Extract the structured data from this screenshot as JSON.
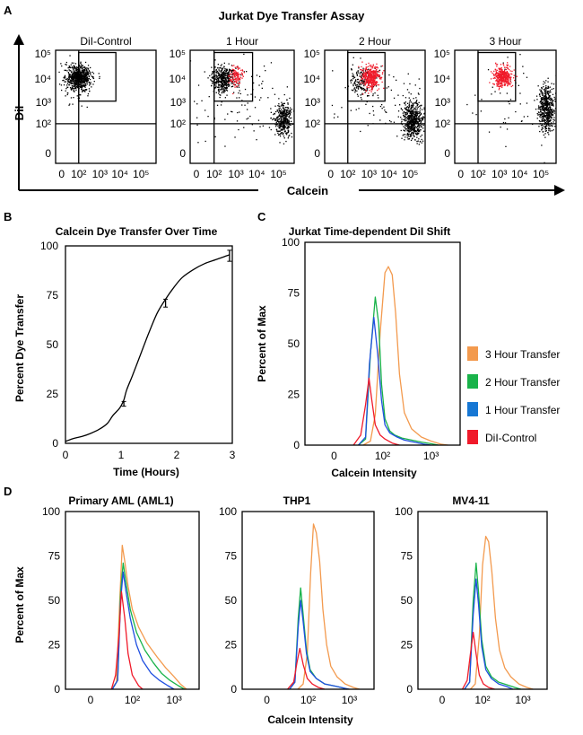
{
  "panel_labels": {
    "a": "A",
    "b": "B",
    "c": "C",
    "d": "D"
  },
  "colors": {
    "orange": "#f39a4e",
    "green": "#19b34a",
    "blue": "#1f4fe0",
    "red": "#f01a2a",
    "legend_blue": "#1677d4",
    "black": "#000000"
  },
  "panel_a": {
    "title": "Jurkat Dye Transfer Assay",
    "ylabel": "DiI",
    "xlabel": "Calcein",
    "subplots": [
      {
        "title": "DiI-Control",
        "black_clusters": [
          {
            "cx": 1.15,
            "cy": 3.8,
            "sx": 0.3,
            "sy": 0.28,
            "n": 650
          },
          {
            "cx": 0.8,
            "cy": 3.6,
            "sx": 0.4,
            "sy": 0.45,
            "n": 60
          }
        ],
        "red_clusters": []
      },
      {
        "title": "1 Hour",
        "black_clusters": [
          {
            "cx": 1.55,
            "cy": 3.75,
            "sx": 0.28,
            "sy": 0.27,
            "n": 420
          },
          {
            "cx": 4.45,
            "cy": 1.95,
            "sx": 0.22,
            "sy": 0.38,
            "n": 380
          },
          {
            "cx": 2.5,
            "cy": 2.8,
            "sx": 1.2,
            "sy": 1.0,
            "n": 90
          }
        ],
        "red_clusters": [
          {
            "cx": 2.2,
            "cy": 3.85,
            "sx": 0.15,
            "sy": 0.22,
            "n": 110
          }
        ]
      },
      {
        "title": "2 Hour",
        "black_clusters": [
          {
            "cx": 4.35,
            "cy": 1.95,
            "sx": 0.25,
            "sy": 0.42,
            "n": 560
          },
          {
            "cx": 1.8,
            "cy": 3.65,
            "sx": 0.3,
            "sy": 0.3,
            "n": 160
          },
          {
            "cx": 2.6,
            "cy": 2.8,
            "sx": 1.2,
            "sy": 1.0,
            "n": 80
          }
        ],
        "red_clusters": [
          {
            "cx": 2.3,
            "cy": 3.8,
            "sx": 0.22,
            "sy": 0.25,
            "n": 380
          }
        ]
      },
      {
        "title": "3 Hour",
        "black_clusters": [
          {
            "cx": 4.5,
            "cy": 2.45,
            "sx": 0.18,
            "sy": 0.5,
            "n": 520
          },
          {
            "cx": 2.8,
            "cy": 2.8,
            "sx": 1.1,
            "sy": 1.0,
            "n": 60
          }
        ],
        "red_clusters": [
          {
            "cx": 2.35,
            "cy": 3.85,
            "sx": 0.22,
            "sy": 0.22,
            "n": 400
          }
        ]
      }
    ],
    "y_ticks": [
      "0",
      "10²",
      "10³",
      "10⁴",
      "10⁵"
    ],
    "x_ticks": [
      "0",
      "10²",
      "10³",
      "10⁴",
      "10⁵"
    ]
  },
  "chart_data": [
    {
      "type": "line",
      "title": "Calcein  Dye Transfer Over Time",
      "xlabel": "Time (Hours)",
      "ylabel": "Percent Dye Transfer",
      "xlim": [
        0,
        3
      ],
      "ylim": [
        0,
        100
      ],
      "x_ticks": [
        "0",
        "1",
        "2",
        "3"
      ],
      "y_ticks": [
        "0",
        "25",
        "50",
        "75",
        "100"
      ],
      "curve_x": [
        0,
        0.15,
        0.3,
        0.45,
        0.6,
        0.75,
        0.85,
        0.95,
        1.0,
        1.05,
        1.1,
        1.2,
        1.35,
        1.5,
        1.65,
        1.8,
        1.95,
        2.1,
        2.3,
        2.5,
        2.7,
        2.85,
        2.95
      ],
      "curve_y": [
        1,
        2.5,
        3.5,
        5,
        7,
        10,
        14,
        17,
        19,
        22,
        27,
        34,
        45,
        56,
        66,
        73,
        79,
        84,
        88,
        91,
        93,
        94.5,
        95.5
      ],
      "points": [
        {
          "x": 1.05,
          "y": 20,
          "err": 1.2
        },
        {
          "x": 1.8,
          "y": 71,
          "err": 2
        },
        {
          "x": 2.95,
          "y": 95,
          "err": 2.8
        }
      ]
    },
    {
      "type": "line",
      "title": "Jurkat Time-dependent DiI Shift",
      "xlabel": "Calcein  Intensity",
      "ylabel": "Percent of Max",
      "ylim": [
        0,
        100
      ],
      "x_ticks": [
        "0",
        "10²",
        "10³"
      ],
      "y_ticks": [
        "0",
        "25",
        "50",
        "75",
        "100"
      ],
      "legend": [
        "3 Hour Transfer",
        "2 Hour Transfer",
        "1 Hour Transfer",
        "DiI-Control"
      ],
      "series": [
        {
          "name": "3 Hour Transfer",
          "color": "#f39a4e",
          "x": [
            1.2,
            1.35,
            1.45,
            1.55,
            1.65,
            1.72,
            1.8,
            1.87,
            1.95,
            2.05,
            2.2,
            2.4,
            2.6,
            2.8,
            2.95
          ],
          "y": [
            0,
            2,
            15,
            55,
            85,
            88,
            84,
            65,
            35,
            16,
            8,
            4,
            2,
            0.5,
            0
          ]
        },
        {
          "name": "2 Hour Transfer",
          "color": "#19b34a",
          "x": [
            1.1,
            1.25,
            1.35,
            1.45,
            1.52,
            1.58,
            1.65,
            1.75,
            1.85,
            2.0,
            2.2,
            2.4,
            2.6,
            2.75
          ],
          "y": [
            0,
            3,
            45,
            73,
            60,
            30,
            13,
            7,
            5,
            3.5,
            2.5,
            1.5,
            0.7,
            0
          ]
        },
        {
          "name": "1 Hour Transfer",
          "color": "#1f4fe0",
          "x": [
            1.1,
            1.25,
            1.33,
            1.42,
            1.5,
            1.58,
            1.65,
            1.75,
            1.9,
            2.05,
            2.25,
            2.45,
            2.6
          ],
          "y": [
            0,
            4,
            40,
            63,
            45,
            22,
            10,
            6,
            4,
            2.5,
            1.5,
            0.5,
            0
          ]
        },
        {
          "name": "DiI-Control",
          "color": "#f01a2a",
          "x": [
            1.0,
            1.15,
            1.25,
            1.32,
            1.38,
            1.45,
            1.55,
            1.65,
            1.8,
            1.95
          ],
          "y": [
            0,
            5,
            20,
            33,
            22,
            10,
            5,
            3,
            1,
            0
          ]
        }
      ]
    },
    {
      "type": "line",
      "title": "Primary AML (AML1)",
      "xlabel": "",
      "ylabel": "Percent of Max",
      "ylim": [
        0,
        100
      ],
      "x_ticks": [
        "0",
        "10²",
        "10³"
      ],
      "y_ticks": [
        "0",
        "25",
        "50",
        "75",
        "100"
      ],
      "series": [
        {
          "name": "3 Hour Transfer",
          "color": "#f39a4e",
          "x": [
            1.1,
            1.22,
            1.3,
            1.36,
            1.42,
            1.5,
            1.6,
            1.75,
            1.95,
            2.2,
            2.4,
            2.6,
            2.75,
            2.9
          ],
          "y": [
            0,
            4,
            50,
            81,
            72,
            58,
            45,
            35,
            26,
            18,
            12,
            7,
            3,
            0
          ]
        },
        {
          "name": "2 Hour Transfer",
          "color": "#19b34a",
          "x": [
            1.12,
            1.25,
            1.32,
            1.38,
            1.45,
            1.55,
            1.7,
            1.9,
            2.1,
            2.3,
            2.5,
            2.7,
            2.85
          ],
          "y": [
            0,
            5,
            55,
            71,
            60,
            45,
            32,
            22,
            15,
            9,
            5,
            2,
            0
          ]
        },
        {
          "name": "1 Hour Transfer",
          "color": "#1f4fe0",
          "x": [
            1.12,
            1.25,
            1.32,
            1.38,
            1.45,
            1.55,
            1.7,
            1.85,
            2.05,
            2.25,
            2.45,
            2.6
          ],
          "y": [
            0,
            5,
            50,
            66,
            55,
            40,
            25,
            16,
            9,
            5,
            2,
            0
          ]
        },
        {
          "name": "DiI-Control",
          "color": "#f01a2a",
          "x": [
            1.1,
            1.2,
            1.28,
            1.34,
            1.42,
            1.5,
            1.6,
            1.75,
            1.85
          ],
          "y": [
            0,
            8,
            30,
            55,
            40,
            20,
            8,
            2,
            0
          ]
        }
      ]
    },
    {
      "type": "line",
      "title": "THP1",
      "xlabel": "Calcein  Intensity",
      "ylabel": "",
      "ylim": [
        0,
        100
      ],
      "x_ticks": [
        "0",
        "10²",
        "10³"
      ],
      "y_ticks": [
        "0",
        "25",
        "50",
        "75",
        "100"
      ],
      "series": [
        {
          "name": "3 Hour Transfer",
          "color": "#f39a4e",
          "x": [
            1.35,
            1.48,
            1.58,
            1.66,
            1.73,
            1.8,
            1.88,
            1.96,
            2.05,
            2.15,
            2.3,
            2.5,
            2.7,
            2.85
          ],
          "y": [
            0,
            3,
            20,
            65,
            93,
            88,
            72,
            45,
            25,
            13,
            7,
            3,
            1,
            0
          ]
        },
        {
          "name": "2 Hour Transfer",
          "color": "#19b34a",
          "x": [
            1.15,
            1.28,
            1.36,
            1.42,
            1.48,
            1.56,
            1.65,
            1.8,
            2.0,
            2.2,
            2.4,
            2.55
          ],
          "y": [
            0,
            4,
            40,
            57,
            42,
            22,
            11,
            6,
            3,
            2,
            1,
            0
          ]
        },
        {
          "name": "1 Hour Transfer",
          "color": "#1f4fe0",
          "x": [
            1.15,
            1.28,
            1.36,
            1.42,
            1.48,
            1.56,
            1.65,
            1.8,
            2.0,
            2.2,
            2.4,
            2.6
          ],
          "y": [
            0,
            4,
            35,
            50,
            38,
            20,
            10,
            6,
            3,
            2,
            1,
            0
          ]
        },
        {
          "name": "DiI-Control",
          "color": "#f01a2a",
          "x": [
            1.1,
            1.25,
            1.33,
            1.4,
            1.48,
            1.58,
            1.7,
            1.85,
            2.0
          ],
          "y": [
            0,
            4,
            15,
            23,
            14,
            6,
            3,
            1,
            0
          ]
        }
      ]
    },
    {
      "type": "line",
      "title": "MV4-11",
      "xlabel": "",
      "ylabel": "",
      "ylim": [
        0,
        100
      ],
      "x_ticks": [
        "0",
        "10²",
        "10³"
      ],
      "y_ticks": [
        "0",
        "25",
        "50",
        "75",
        "100"
      ],
      "series": [
        {
          "name": "3 Hour Transfer",
          "color": "#f39a4e",
          "x": [
            1.3,
            1.42,
            1.52,
            1.6,
            1.68,
            1.75,
            1.83,
            1.92,
            2.02,
            2.15,
            2.3,
            2.5,
            2.7,
            2.85
          ],
          "y": [
            0,
            3,
            30,
            70,
            86,
            83,
            66,
            40,
            22,
            12,
            7,
            3,
            1,
            0
          ]
        },
        {
          "name": "2 Hour Transfer",
          "color": "#19b34a",
          "x": [
            1.15,
            1.28,
            1.37,
            1.44,
            1.5,
            1.58,
            1.68,
            1.82,
            2.0,
            2.2,
            2.4,
            2.55
          ],
          "y": [
            0,
            4,
            50,
            71,
            55,
            28,
            13,
            7,
            4,
            2.5,
            1,
            0
          ]
        },
        {
          "name": "1 Hour Transfer",
          "color": "#1f4fe0",
          "x": [
            1.15,
            1.28,
            1.37,
            1.44,
            1.5,
            1.58,
            1.68,
            1.82,
            2.0,
            2.2,
            2.35
          ],
          "y": [
            0,
            4,
            42,
            62,
            48,
            24,
            11,
            6,
            3,
            1.5,
            0
          ]
        },
        {
          "name": "DiI-Control",
          "color": "#f01a2a",
          "x": [
            1.1,
            1.22,
            1.3,
            1.37,
            1.44,
            1.52,
            1.62,
            1.75,
            1.9
          ],
          "y": [
            0,
            5,
            20,
            32,
            20,
            8,
            3,
            1,
            0
          ]
        }
      ]
    }
  ]
}
